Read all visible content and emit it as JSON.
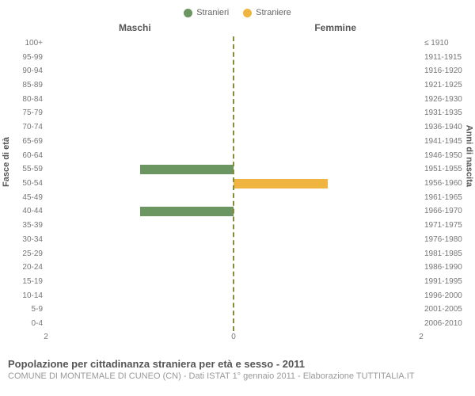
{
  "legend": {
    "items": [
      {
        "label": "Stranieri",
        "color": "#6b9662"
      },
      {
        "label": "Straniere",
        "color": "#f0b540"
      }
    ]
  },
  "columns": {
    "left": "Maschi",
    "right": "Femmine"
  },
  "axis": {
    "left_title": "Fasce di età",
    "right_title": "Anni di nascita",
    "xmax": 2,
    "xticks_left": [
      2,
      0
    ],
    "xticks_right": [
      0,
      2
    ]
  },
  "colors": {
    "male": "#6b9662",
    "female": "#f0b540",
    "centerline": "#888b3a",
    "background": "#ffffff",
    "text": "#666666"
  },
  "bands": [
    {
      "age": "100+",
      "birth": "≤ 1910",
      "m": 0,
      "f": 0
    },
    {
      "age": "95-99",
      "birth": "1911-1915",
      "m": 0,
      "f": 0
    },
    {
      "age": "90-94",
      "birth": "1916-1920",
      "m": 0,
      "f": 0
    },
    {
      "age": "85-89",
      "birth": "1921-1925",
      "m": 0,
      "f": 0
    },
    {
      "age": "80-84",
      "birth": "1926-1930",
      "m": 0,
      "f": 0
    },
    {
      "age": "75-79",
      "birth": "1931-1935",
      "m": 0,
      "f": 0
    },
    {
      "age": "70-74",
      "birth": "1936-1940",
      "m": 0,
      "f": 0
    },
    {
      "age": "65-69",
      "birth": "1941-1945",
      "m": 0,
      "f": 0
    },
    {
      "age": "60-64",
      "birth": "1946-1950",
      "m": 0,
      "f": 0
    },
    {
      "age": "55-59",
      "birth": "1951-1955",
      "m": 1,
      "f": 0
    },
    {
      "age": "50-54",
      "birth": "1956-1960",
      "m": 0,
      "f": 1
    },
    {
      "age": "45-49",
      "birth": "1961-1965",
      "m": 0,
      "f": 0
    },
    {
      "age": "40-44",
      "birth": "1966-1970",
      "m": 1,
      "f": 0
    },
    {
      "age": "35-39",
      "birth": "1971-1975",
      "m": 0,
      "f": 0
    },
    {
      "age": "30-34",
      "birth": "1976-1980",
      "m": 0,
      "f": 0
    },
    {
      "age": "25-29",
      "birth": "1981-1985",
      "m": 0,
      "f": 0
    },
    {
      "age": "20-24",
      "birth": "1986-1990",
      "m": 0,
      "f": 0
    },
    {
      "age": "15-19",
      "birth": "1991-1995",
      "m": 0,
      "f": 0
    },
    {
      "age": "10-14",
      "birth": "1996-2000",
      "m": 0,
      "f": 0
    },
    {
      "age": "5-9",
      "birth": "2001-2005",
      "m": 0,
      "f": 0
    },
    {
      "age": "0-4",
      "birth": "2006-2010",
      "m": 0,
      "f": 0
    }
  ],
  "footer": {
    "title": "Popolazione per cittadinanza straniera per età e sesso - 2011",
    "subtitle": "COMUNE DI MONTEMALE DI CUNEO (CN) - Dati ISTAT 1° gennaio 2011 - Elaborazione TUTTITALIA.IT"
  }
}
